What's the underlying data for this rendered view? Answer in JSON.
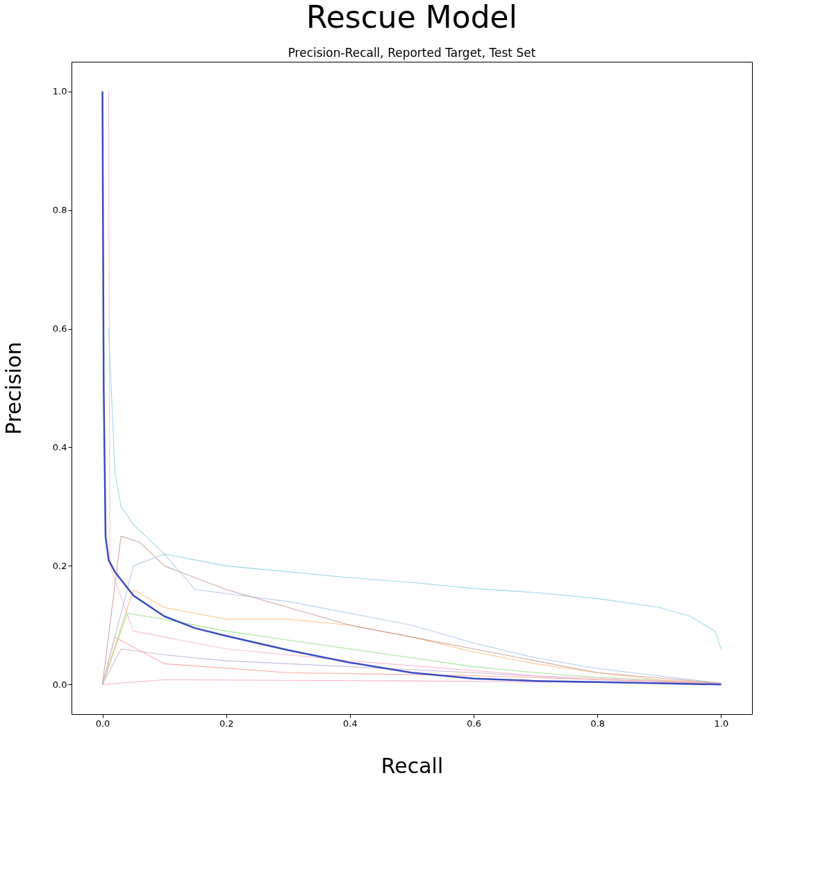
{
  "chart_data": {
    "type": "line",
    "title": "Rescue Model",
    "subtitle": "Precision-Recall, Reported Target, Test Set",
    "xlabel": "Recall",
    "ylabel": "Precision",
    "xlim": [
      -0.05,
      1.05
    ],
    "ylim": [
      -0.05,
      1.05
    ],
    "xticks": [
      {
        "value": 0,
        "label": "0.0"
      },
      0.2,
      0.4,
      0.6,
      0.8,
      {
        "value": 1,
        "label": "1.0"
      }
    ],
    "yticks": [
      {
        "value": 0,
        "label": "0.0"
      },
      0.2,
      0.4,
      0.6,
      0.8,
      {
        "value": 1,
        "label": "1.0"
      }
    ],
    "grid": false,
    "marker": "none",
    "line_style": "solid",
    "series": [
      {
        "color": "#f4a6c6",
        "x": [
          0,
          0.1,
          0.5,
          1.0
        ],
        "values": [
          0.0,
          0.008,
          0.006,
          0.002
        ]
      },
      {
        "color": "#c5b0d5",
        "x": [
          0,
          0.03,
          0.1,
          0.2,
          0.4,
          0.6,
          0.8,
          1.0
        ],
        "values": [
          0,
          0.06,
          0.05,
          0.04,
          0.03,
          0.02,
          0.008,
          0.002
        ]
      },
      {
        "color": "#ff9896",
        "x": [
          0,
          0.02,
          0.1,
          0.3,
          0.6,
          1.0
        ],
        "values": [
          0,
          0.08,
          0.035,
          0.02,
          0.015,
          0.002
        ]
      },
      {
        "color": "#98df8a",
        "x": [
          0,
          0.04,
          0.1,
          0.2,
          0.3,
          0.4,
          0.5,
          0.6,
          0.7,
          0.8,
          1.0
        ],
        "values": [
          0,
          0.12,
          0.11,
          0.09,
          0.075,
          0.06,
          0.045,
          0.03,
          0.02,
          0.012,
          0.002
        ]
      },
      {
        "color": "#ffbb78",
        "x": [
          0,
          0.05,
          0.1,
          0.2,
          0.3,
          0.4,
          0.5,
          0.6,
          0.7,
          0.8,
          0.9,
          1.0
        ],
        "values": [
          0,
          0.16,
          0.13,
          0.11,
          0.11,
          0.1,
          0.08,
          0.055,
          0.035,
          0.02,
          0.008,
          0.002
        ]
      },
      {
        "color": "#aec7e8",
        "x": [
          0,
          0.05,
          0.1,
          0.15,
          0.3,
          0.5,
          0.6,
          0.7,
          0.8,
          1.0
        ],
        "values": [
          0,
          0.2,
          0.22,
          0.16,
          0.14,
          0.1,
          0.07,
          0.045,
          0.027,
          0.002
        ]
      },
      {
        "color": "#c49c94",
        "x": [
          0,
          0.03,
          0.06,
          0.1,
          0.2,
          0.3,
          0.4,
          0.5,
          0.6,
          0.7,
          0.8,
          1.0
        ],
        "values": [
          0,
          0.25,
          0.24,
          0.2,
          0.16,
          0.13,
          0.1,
          0.08,
          0.06,
          0.04,
          0.02,
          0.002
        ]
      },
      {
        "color": "#f7b6d2",
        "x": [
          0.01,
          0.012,
          0.05,
          0.2,
          0.4,
          0.7,
          1.0
        ],
        "values": [
          1.0,
          0.2,
          0.09,
          0.06,
          0.04,
          0.015,
          0.002
        ]
      },
      {
        "color": "#8fd3e0",
        "x": [
          0.01,
          0.02,
          0.03,
          0.05,
          0.1,
          0.2,
          0.3,
          0.4,
          0.5,
          0.6,
          0.7,
          0.8,
          0.9,
          0.95,
          0.99,
          1.0
        ],
        "values": [
          0.6,
          0.36,
          0.3,
          0.27,
          0.22,
          0.2,
          0.19,
          0.18,
          0.172,
          0.162,
          0.155,
          0.145,
          0.13,
          0.115,
          0.09,
          0.06
        ]
      },
      {
        "color": "#3b4cc0",
        "x": [
          0,
          0.002,
          0.005,
          0.01,
          0.02,
          0.05,
          0.1,
          0.15,
          0.2,
          0.3,
          0.4,
          0.5,
          0.6,
          0.7,
          0.8,
          0.9,
          1.0
        ],
        "values": [
          1.0,
          0.5,
          0.25,
          0.21,
          0.19,
          0.15,
          0.115,
          0.095,
          0.082,
          0.058,
          0.037,
          0.02,
          0.01,
          0.006,
          0.004,
          0.002,
          0.0
        ]
      }
    ]
  }
}
